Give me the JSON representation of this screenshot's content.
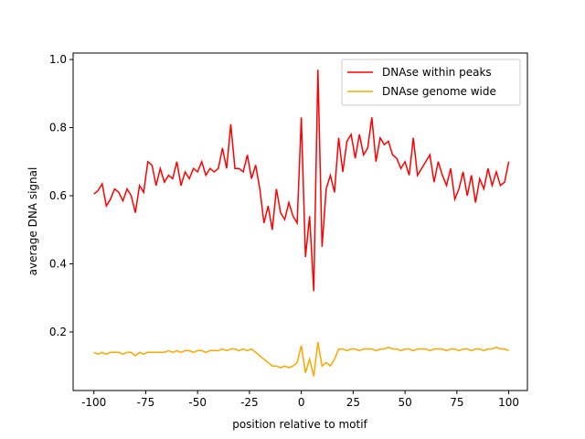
{
  "chart_data": {
    "type": "line",
    "xlabel": "position relative to motif",
    "ylabel": "average DNA signal",
    "x": [
      -100,
      -98,
      -96,
      -94,
      -92,
      -90,
      -88,
      -86,
      -84,
      -82,
      -80,
      -78,
      -76,
      -74,
      -72,
      -70,
      -68,
      -66,
      -64,
      -62,
      -60,
      -58,
      -56,
      -54,
      -52,
      -50,
      -48,
      -46,
      -44,
      -42,
      -40,
      -38,
      -36,
      -34,
      -32,
      -30,
      -28,
      -26,
      -24,
      -22,
      -20,
      -18,
      -16,
      -14,
      -12,
      -10,
      -8,
      -6,
      -4,
      -2,
      0,
      2,
      4,
      6,
      8,
      10,
      12,
      14,
      16,
      18,
      20,
      22,
      24,
      26,
      28,
      30,
      32,
      34,
      36,
      38,
      40,
      42,
      44,
      46,
      48,
      50,
      52,
      54,
      56,
      58,
      60,
      62,
      64,
      66,
      68,
      70,
      72,
      74,
      76,
      78,
      80,
      82,
      84,
      86,
      88,
      90,
      92,
      94,
      96,
      98,
      100
    ],
    "series": [
      {
        "name": "DNAse within peaks",
        "color": "#ff0000",
        "values": [
          0.605,
          0.615,
          0.635,
          0.57,
          0.59,
          0.62,
          0.61,
          0.585,
          0.62,
          0.6,
          0.55,
          0.63,
          0.61,
          0.7,
          0.69,
          0.63,
          0.68,
          0.64,
          0.66,
          0.65,
          0.7,
          0.63,
          0.67,
          0.65,
          0.68,
          0.67,
          0.7,
          0.66,
          0.68,
          0.67,
          0.68,
          0.74,
          0.68,
          0.81,
          0.68,
          0.68,
          0.67,
          0.72,
          0.65,
          0.69,
          0.62,
          0.52,
          0.57,
          0.5,
          0.62,
          0.55,
          0.53,
          0.58,
          0.54,
          0.52,
          0.83,
          0.42,
          0.54,
          0.32,
          0.97,
          0.45,
          0.62,
          0.66,
          0.61,
          0.77,
          0.67,
          0.76,
          0.78,
          0.71,
          0.78,
          0.72,
          0.74,
          0.83,
          0.7,
          0.77,
          0.75,
          0.76,
          0.72,
          0.71,
          0.68,
          0.7,
          0.66,
          0.77,
          0.66,
          0.68,
          0.7,
          0.72,
          0.64,
          0.7,
          0.66,
          0.63,
          0.68,
          0.59,
          0.62,
          0.67,
          0.6,
          0.66,
          0.58,
          0.65,
          0.62,
          0.68,
          0.63,
          0.67,
          0.63,
          0.64,
          0.7
        ]
      },
      {
        "name": "DNAse genome wide",
        "color": "#ffa500",
        "values": [
          0.14,
          0.135,
          0.14,
          0.135,
          0.14,
          0.14,
          0.14,
          0.135,
          0.14,
          0.14,
          0.13,
          0.14,
          0.135,
          0.14,
          0.14,
          0.14,
          0.14,
          0.14,
          0.145,
          0.14,
          0.145,
          0.14,
          0.145,
          0.145,
          0.14,
          0.145,
          0.145,
          0.14,
          0.145,
          0.145,
          0.145,
          0.15,
          0.145,
          0.15,
          0.15,
          0.145,
          0.15,
          0.145,
          0.15,
          0.14,
          0.13,
          0.12,
          0.11,
          0.1,
          0.1,
          0.095,
          0.1,
          0.095,
          0.1,
          0.11,
          0.16,
          0.08,
          0.12,
          0.07,
          0.17,
          0.1,
          0.11,
          0.1,
          0.12,
          0.15,
          0.15,
          0.145,
          0.15,
          0.15,
          0.145,
          0.15,
          0.15,
          0.15,
          0.145,
          0.15,
          0.15,
          0.155,
          0.15,
          0.15,
          0.145,
          0.15,
          0.15,
          0.145,
          0.15,
          0.15,
          0.15,
          0.145,
          0.15,
          0.15,
          0.15,
          0.145,
          0.15,
          0.15,
          0.145,
          0.15,
          0.15,
          0.145,
          0.15,
          0.15,
          0.145,
          0.15,
          0.15,
          0.155,
          0.15,
          0.15,
          0.145
        ]
      }
    ],
    "xlim": [
      -110,
      109
    ],
    "ylim": [
      0.028,
      1.019
    ],
    "xticks": [
      -100,
      -75,
      -50,
      -25,
      0,
      25,
      50,
      75,
      100
    ],
    "yticks": [
      0.2,
      0.4,
      0.6,
      0.8,
      {
        "value": 1,
        "label": "1.0"
      }
    ],
    "legend": "upper right"
  }
}
